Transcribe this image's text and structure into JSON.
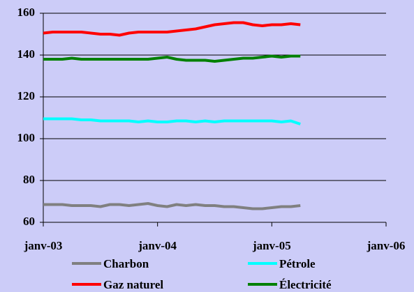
{
  "chart_data": {
    "type": "line",
    "x": [
      0,
      1,
      2,
      3,
      4,
      5,
      6,
      7,
      8,
      9,
      10,
      11,
      12,
      13,
      14,
      15,
      16,
      17,
      18,
      19,
      20,
      21,
      22,
      23,
      24,
      25,
      26,
      27
    ],
    "xlim": [
      0,
      36
    ],
    "xticks": [
      {
        "value": 0,
        "label": "janv-03"
      },
      {
        "value": 12,
        "label": "janv-04"
      },
      {
        "value": 24,
        "label": "janv-05"
      },
      {
        "value": 36,
        "label": "janv-06"
      }
    ],
    "ylim": [
      60,
      160
    ],
    "yticks": [
      60,
      80,
      100,
      120,
      140,
      160
    ],
    "grid": true,
    "series": [
      {
        "name": "Charbon",
        "color": "#808080",
        "values": [
          68.5,
          68.5,
          68.5,
          68,
          68,
          68,
          67.5,
          68.5,
          68.5,
          68,
          68.5,
          69,
          68,
          67.5,
          68.5,
          68,
          68.5,
          68,
          68,
          67.5,
          67.5,
          67,
          66.5,
          66.5,
          67,
          67.5,
          67.5,
          68
        ]
      },
      {
        "name": "Pétrole",
        "color": "#00ffff",
        "values": [
          109.5,
          109.5,
          109.5,
          109.5,
          109,
          109,
          108.5,
          108.5,
          108.5,
          108.5,
          108,
          108.5,
          108,
          108,
          108.5,
          108.5,
          108,
          108.5,
          108,
          108.5,
          108.5,
          108.5,
          108.5,
          108.5,
          108.5,
          108,
          108.5,
          107
        ]
      },
      {
        "name": "Gaz naturel",
        "color": "#ff0000",
        "values": [
          150.5,
          151,
          151,
          151,
          151,
          150.5,
          150,
          150,
          149.5,
          150.5,
          151,
          151,
          151,
          151,
          151.5,
          152,
          152.5,
          153.5,
          154.5,
          155,
          155.5,
          155.5,
          154.5,
          154,
          154.5,
          154.5,
          155,
          154.5
        ]
      },
      {
        "name": "Électricité",
        "color": "#008000",
        "values": [
          138,
          138,
          138,
          138.5,
          138,
          138,
          138,
          138,
          138,
          138,
          138,
          138,
          138.5,
          139,
          138,
          137.5,
          137.5,
          137.5,
          137,
          137.5,
          138,
          138.5,
          138.5,
          139,
          139.5,
          139,
          139.5,
          139.5
        ]
      }
    ]
  }
}
